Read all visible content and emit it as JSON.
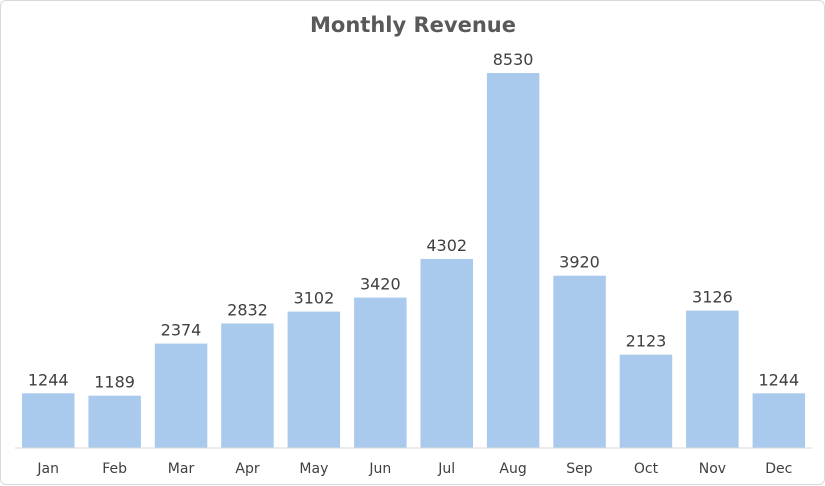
{
  "chart_data": {
    "type": "bar",
    "title": "Monthly Revenue",
    "xlabel": "",
    "ylabel": "",
    "categories": [
      "Jan",
      "Feb",
      "Mar",
      "Apr",
      "May",
      "Jun",
      "Jul",
      "Aug",
      "Sep",
      "Oct",
      "Nov",
      "Dec"
    ],
    "values": [
      1244,
      1189,
      2374,
      2832,
      3102,
      3420,
      4302,
      8530,
      3920,
      2123,
      3126,
      1244
    ],
    "ylim": [
      0,
      8530
    ],
    "grid": false,
    "legend": "none",
    "colors": {
      "bar": "#a9caec",
      "title": "#595959",
      "text": "#404040",
      "axis": "#d9d9d9"
    }
  }
}
